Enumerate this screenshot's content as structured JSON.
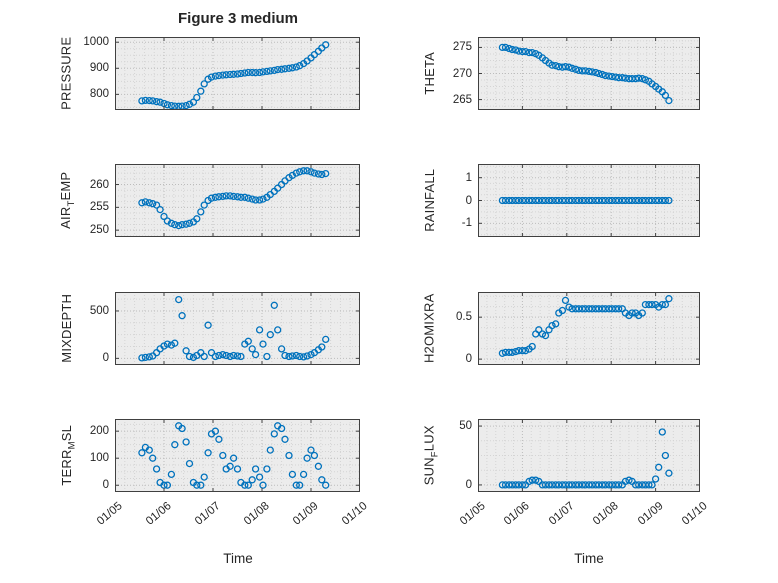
{
  "figure": {
    "title": "Figure 3 medium"
  },
  "x_axis": {
    "label": "Time",
    "ticks": [
      "01/05",
      "01/06",
      "01/07",
      "01/08",
      "01/09",
      "01/10"
    ],
    "tick_values": [
      5,
      6,
      7,
      8,
      9,
      10
    ]
  },
  "style": {
    "marker_color": "#0072BD",
    "axes_background": "#ececec",
    "grid_color": "#bcbcbc",
    "minor_grid_color": "#d4d4d4",
    "axis_color": "#404040",
    "text_color": "#262626"
  },
  "chart_data": {
    "type": "scatter",
    "xlim": [
      5,
      10
    ],
    "xlabel": "Time",
    "x_tick_labels": [
      "01/05",
      "01/06",
      "01/07",
      "01/08",
      "01/09",
      "01/10"
    ],
    "x": [
      5.55,
      5.62,
      5.7,
      5.77,
      5.85,
      5.92,
      6.0,
      6.07,
      6.15,
      6.22,
      6.3,
      6.37,
      6.45,
      6.52,
      6.6,
      6.67,
      6.75,
      6.82,
      6.9,
      6.97,
      7.05,
      7.12,
      7.2,
      7.27,
      7.35,
      7.42,
      7.5,
      7.57,
      7.65,
      7.72,
      7.8,
      7.87,
      7.95,
      8.02,
      8.1,
      8.17,
      8.25,
      8.32,
      8.4,
      8.47,
      8.55,
      8.62,
      8.7,
      8.77,
      8.85,
      8.92,
      9.0,
      9.07,
      9.15,
      9.22,
      9.3
    ],
    "subplots": [
      {
        "id": "pressure",
        "ylabel_pre": "PRESSURE",
        "ylabel_sub": "",
        "ylabel_post": "",
        "yticks": [
          800,
          900,
          1000
        ],
        "ylim": [
          740,
          1020
        ],
        "y": [
          775,
          777,
          776,
          775,
          772,
          770,
          765,
          760,
          757,
          755,
          754,
          755,
          757,
          762,
          770,
          788,
          812,
          840,
          858,
          866,
          870,
          872,
          874,
          875,
          876,
          877,
          878,
          880,
          882,
          884,
          884,
          883,
          884,
          886,
          888,
          890,
          892,
          895,
          896,
          898,
          900,
          902,
          905,
          910,
          918,
          928,
          940,
          952,
          965,
          978,
          990
        ]
      },
      {
        "id": "theta",
        "ylabel_pre": "THETA",
        "ylabel_sub": "",
        "ylabel_post": "",
        "yticks": [
          265,
          270,
          275
        ],
        "ylim": [
          263,
          277
        ],
        "y": [
          275,
          275,
          274.8,
          274.6,
          274.5,
          274.3,
          274.2,
          274.2,
          274,
          274,
          273.8,
          273.5,
          273,
          272.5,
          272,
          271.6,
          271.5,
          271.3,
          271.2,
          271.3,
          271.2,
          271,
          270.8,
          270.6,
          270.5,
          270.5,
          270.4,
          270.3,
          270.2,
          270,
          269.8,
          269.6,
          269.5,
          269.4,
          269.3,
          269.2,
          269.2,
          269.1,
          269,
          269,
          269,
          269.1,
          269,
          268.8,
          268.5,
          268,
          267.5,
          267,
          266.5,
          265.8,
          264.8
        ]
      },
      {
        "id": "airtemp",
        "ylabel_pre": "AIR",
        "ylabel_sub": "T",
        "ylabel_post": "EMP",
        "yticks": [
          250,
          255,
          260
        ],
        "ylim": [
          248.5,
          264.5
        ],
        "y": [
          256,
          256.2,
          256,
          255.8,
          255.5,
          254.5,
          253,
          252,
          251.5,
          251.2,
          251,
          251.2,
          251.3,
          251.5,
          251.8,
          252.5,
          254,
          255.5,
          256.5,
          257,
          257.2,
          257.3,
          257.4,
          257.5,
          257.5,
          257.4,
          257.3,
          257.2,
          257.2,
          257,
          256.8,
          256.6,
          256.6,
          256.8,
          257.2,
          257.8,
          258.5,
          259.2,
          260,
          260.8,
          261.5,
          262,
          262.5,
          262.8,
          263,
          263,
          262.8,
          262.5,
          262.3,
          262.2,
          262.4
        ]
      },
      {
        "id": "rainfall",
        "ylabel_pre": "RAINFALL",
        "ylabel_sub": "",
        "ylabel_post": "",
        "yticks": [
          -1,
          0,
          1
        ],
        "ylim": [
          -1.6,
          1.6
        ],
        "y": [
          0,
          0,
          0,
          0,
          0,
          0,
          0,
          0,
          0,
          0,
          0,
          0,
          0,
          0,
          0,
          0,
          0,
          0,
          0,
          0,
          0,
          0,
          0,
          0,
          0,
          0,
          0,
          0,
          0,
          0,
          0,
          0,
          0,
          0,
          0,
          0,
          0,
          0,
          0,
          0,
          0,
          0,
          0,
          0,
          0,
          0,
          0,
          0,
          0,
          0,
          0
        ]
      },
      {
        "id": "mixdepth",
        "ylabel_pre": "MIXDEPTH",
        "ylabel_sub": "",
        "ylabel_post": "",
        "yticks": [
          0,
          500
        ],
        "ylim": [
          -70,
          700
        ],
        "y": [
          5,
          10,
          15,
          25,
          60,
          100,
          130,
          150,
          140,
          160,
          620,
          450,
          80,
          20,
          10,
          30,
          60,
          20,
          350,
          60,
          20,
          30,
          40,
          30,
          20,
          30,
          25,
          20,
          150,
          180,
          100,
          40,
          300,
          150,
          20,
          250,
          560,
          300,
          100,
          30,
          20,
          25,
          30,
          20,
          15,
          25,
          40,
          60,
          90,
          120,
          200
        ]
      },
      {
        "id": "h2omixra",
        "ylabel_pre": "H2OMIXRA",
        "ylabel_sub": "",
        "ylabel_post": "",
        "yticks": [
          0,
          0.5
        ],
        "ylim": [
          -0.07,
          0.8
        ],
        "y": [
          0.07,
          0.08,
          0.08,
          0.08,
          0.09,
          0.1,
          0.1,
          0.1,
          0.12,
          0.15,
          0.3,
          0.35,
          0.3,
          0.28,
          0.35,
          0.4,
          0.42,
          0.55,
          0.58,
          0.7,
          0.62,
          0.6,
          0.6,
          0.6,
          0.6,
          0.6,
          0.6,
          0.6,
          0.6,
          0.6,
          0.6,
          0.6,
          0.6,
          0.6,
          0.6,
          0.6,
          0.6,
          0.55,
          0.52,
          0.55,
          0.55,
          0.52,
          0.55,
          0.65,
          0.65,
          0.65,
          0.65,
          0.62,
          0.65,
          0.65,
          0.72
        ]
      },
      {
        "id": "terrmsl",
        "ylabel_pre": "TERR",
        "ylabel_sub": "M",
        "ylabel_post": "SL",
        "yticks": [
          0,
          100,
          200
        ],
        "ylim": [
          -25,
          245
        ],
        "y": [
          120,
          140,
          130,
          100,
          60,
          10,
          0,
          0,
          40,
          150,
          220,
          210,
          160,
          80,
          10,
          0,
          0,
          30,
          120,
          190,
          200,
          170,
          110,
          60,
          70,
          100,
          60,
          10,
          0,
          0,
          20,
          60,
          30,
          0,
          60,
          130,
          190,
          220,
          210,
          170,
          110,
          40,
          0,
          0,
          40,
          100,
          130,
          110,
          70,
          20,
          0
        ]
      },
      {
        "id": "sunflux",
        "ylabel_pre": "SUN",
        "ylabel_sub": "F",
        "ylabel_post": "LUX",
        "yticks": [
          0,
          50
        ],
        "ylim": [
          -6,
          56
        ],
        "y": [
          0,
          0,
          0,
          0,
          0,
          0,
          0,
          0,
          3,
          4,
          4,
          3,
          0,
          0,
          0,
          0,
          0,
          0,
          0,
          0,
          0,
          0,
          0,
          0,
          0,
          0,
          0,
          0,
          0,
          0,
          0,
          0,
          0,
          0,
          0,
          0,
          0,
          3,
          4,
          3,
          0,
          0,
          0,
          0,
          0,
          0,
          5,
          15,
          45,
          25,
          10
        ]
      }
    ]
  }
}
